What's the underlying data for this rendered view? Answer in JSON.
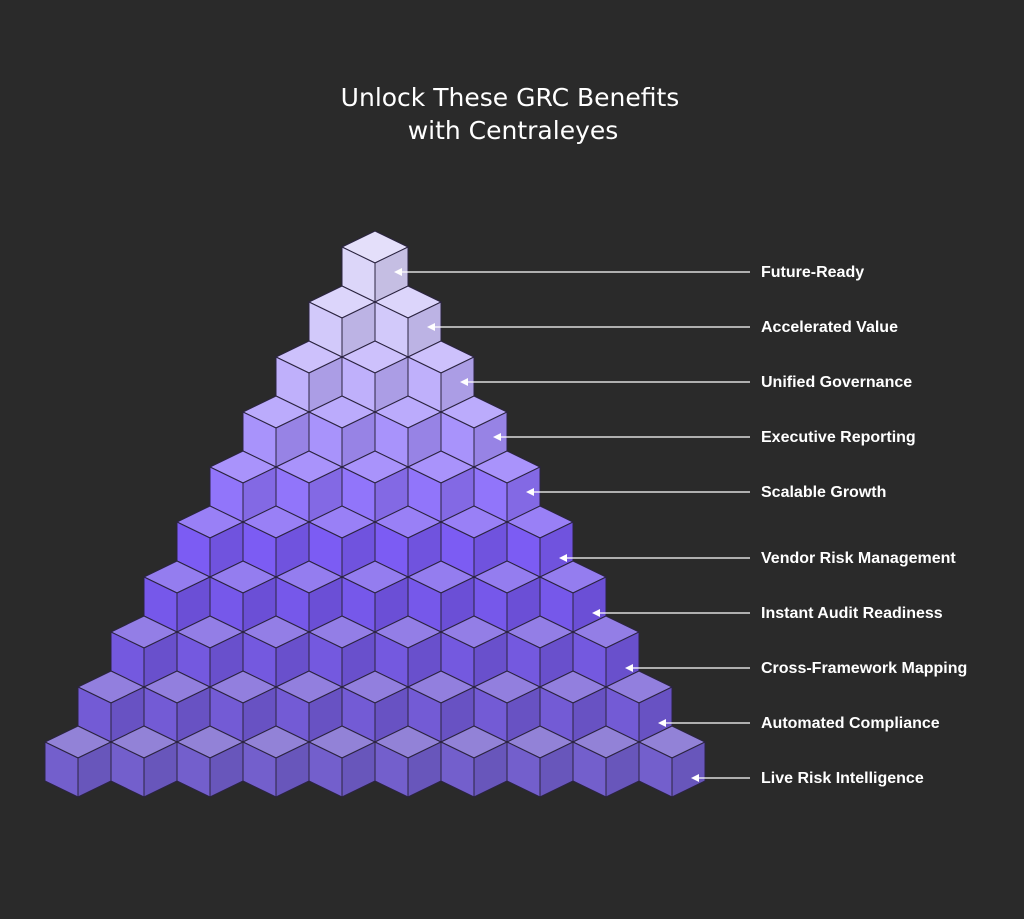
{
  "header": {
    "title_lines": [
      "Unlock These GRC Benefits",
      "with Centraleyes"
    ]
  },
  "benefits": [
    "Future-Ready",
    "Accelerated Value",
    "Unified Governance",
    "Executive Reporting",
    "Scalable Growth",
    "Vendor Risk Management",
    "Instant Audit Readiness",
    "Cross-Framework Mapping",
    "Automated Compliance",
    "Live Risk Intelligence"
  ]
}
